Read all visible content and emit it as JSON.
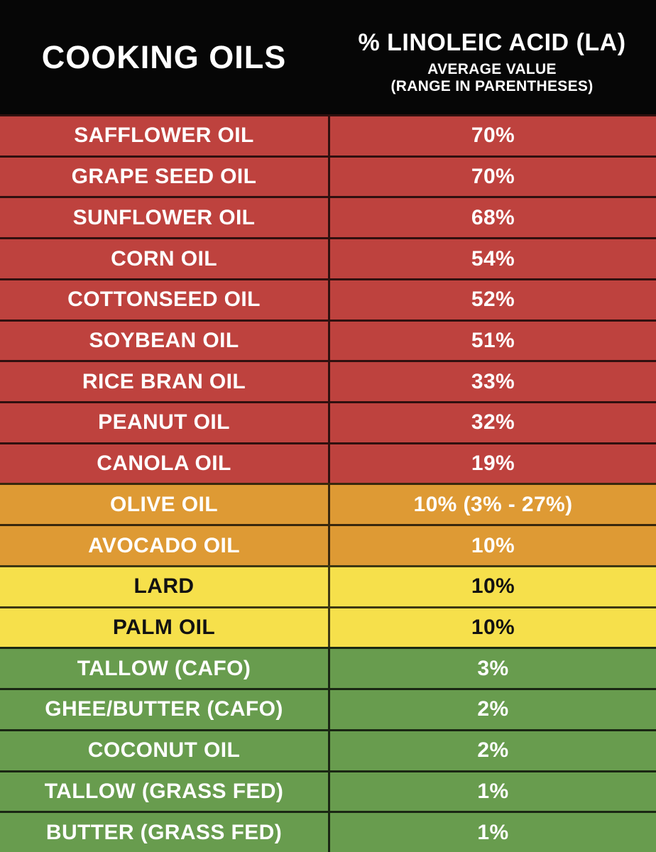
{
  "header": {
    "left_title": "COOKING OILS",
    "right_title": "% LINOLEIC ACID (LA)",
    "right_subtitle1": "AVERAGE VALUE",
    "right_subtitle2": "(RANGE IN PARENTHESES)"
  },
  "colors": {
    "header_bg": "#060606",
    "red": "#BE423E",
    "orange": "#DE9A34",
    "yellow": "#F6E04B",
    "green": "#689C4E",
    "divider": "rgba(0,0,0,0.75)",
    "text_light": "#FFFFFF",
    "text_dark": "#121212"
  },
  "rows": [
    {
      "name": "SAFFLOWER OIL",
      "value": "70%",
      "tier": "red"
    },
    {
      "name": "GRAPE SEED OIL",
      "value": "70%",
      "tier": "red"
    },
    {
      "name": "SUNFLOWER OIL",
      "value": "68%",
      "tier": "red"
    },
    {
      "name": "CORN OIL",
      "value": "54%",
      "tier": "red"
    },
    {
      "name": "COTTONSEED OIL",
      "value": "52%",
      "tier": "red"
    },
    {
      "name": "SOYBEAN OIL",
      "value": "51%",
      "tier": "red"
    },
    {
      "name": "RICE BRAN OIL",
      "value": "33%",
      "tier": "red"
    },
    {
      "name": "PEANUT OIL",
      "value": "32%",
      "tier": "red"
    },
    {
      "name": "CANOLA OIL",
      "value": "19%",
      "tier": "red"
    },
    {
      "name": "OLIVE OIL",
      "value": "10% (3% - 27%)",
      "tier": "orange"
    },
    {
      "name": "AVOCADO OIL",
      "value": "10%",
      "tier": "orange"
    },
    {
      "name": "LARD",
      "value": "10%",
      "tier": "yellow"
    },
    {
      "name": "PALM OIL",
      "value": "10%",
      "tier": "yellow"
    },
    {
      "name": "TALLOW (CAFO)",
      "value": "3%",
      "tier": "green"
    },
    {
      "name": "GHEE/BUTTER (CAFO)",
      "value": "2%",
      "tier": "green"
    },
    {
      "name": "COCONUT OIL",
      "value": "2%",
      "tier": "green"
    },
    {
      "name": "TALLOW (GRASS FED)",
      "value": "1%",
      "tier": "green"
    },
    {
      "name": "BUTTER (GRASS FED)",
      "value": "1%",
      "tier": "green"
    }
  ],
  "chart_data": {
    "type": "table",
    "title": "COOKING OILS — % LINOLEIC ACID (LA), AVERAGE VALUE (RANGE IN PARENTHESES)",
    "columns": [
      "COOKING OILS",
      "% LINOLEIC ACID (LA)"
    ],
    "rows": [
      [
        "SAFFLOWER OIL",
        "70%"
      ],
      [
        "GRAPE SEED OIL",
        "70%"
      ],
      [
        "SUNFLOWER OIL",
        "68%"
      ],
      [
        "CORN OIL",
        "54%"
      ],
      [
        "COTTONSEED OIL",
        "52%"
      ],
      [
        "SOYBEAN OIL",
        "51%"
      ],
      [
        "RICE BRAN OIL",
        "33%"
      ],
      [
        "PEANUT OIL",
        "32%"
      ],
      [
        "CANOLA OIL",
        "19%"
      ],
      [
        "OLIVE OIL",
        "10% (3% - 27%)"
      ],
      [
        "AVOCADO OIL",
        "10%"
      ],
      [
        "LARD",
        "10%"
      ],
      [
        "PALM OIL",
        "10%"
      ],
      [
        "TALLOW (CAFO)",
        "3%"
      ],
      [
        "GHEE/BUTTER (CAFO)",
        "2%"
      ],
      [
        "COCONUT OIL",
        "2%"
      ],
      [
        "TALLOW (GRASS FED)",
        "1%"
      ],
      [
        "BUTTER (GRASS FED)",
        "1%"
      ]
    ],
    "values_numeric": [
      70,
      70,
      68,
      54,
      52,
      51,
      33,
      32,
      19,
      10,
      10,
      10,
      10,
      3,
      2,
      2,
      1,
      1
    ],
    "olive_oil_range": [
      3,
      27
    ],
    "color_groups": {
      "red_high": [
        "SAFFLOWER OIL",
        "GRAPE SEED OIL",
        "SUNFLOWER OIL",
        "CORN OIL",
        "COTTONSEED OIL",
        "SOYBEAN OIL",
        "RICE BRAN OIL",
        "PEANUT OIL",
        "CANOLA OIL"
      ],
      "orange_medium": [
        "OLIVE OIL",
        "AVOCADO OIL"
      ],
      "yellow_low": [
        "LARD",
        "PALM OIL"
      ],
      "green_lowest": [
        "TALLOW (CAFO)",
        "GHEE/BUTTER (CAFO)",
        "COCONUT OIL",
        "TALLOW (GRASS FED)",
        "BUTTER (GRASS FED)"
      ]
    },
    "legend_position": "none",
    "grid": true
  }
}
